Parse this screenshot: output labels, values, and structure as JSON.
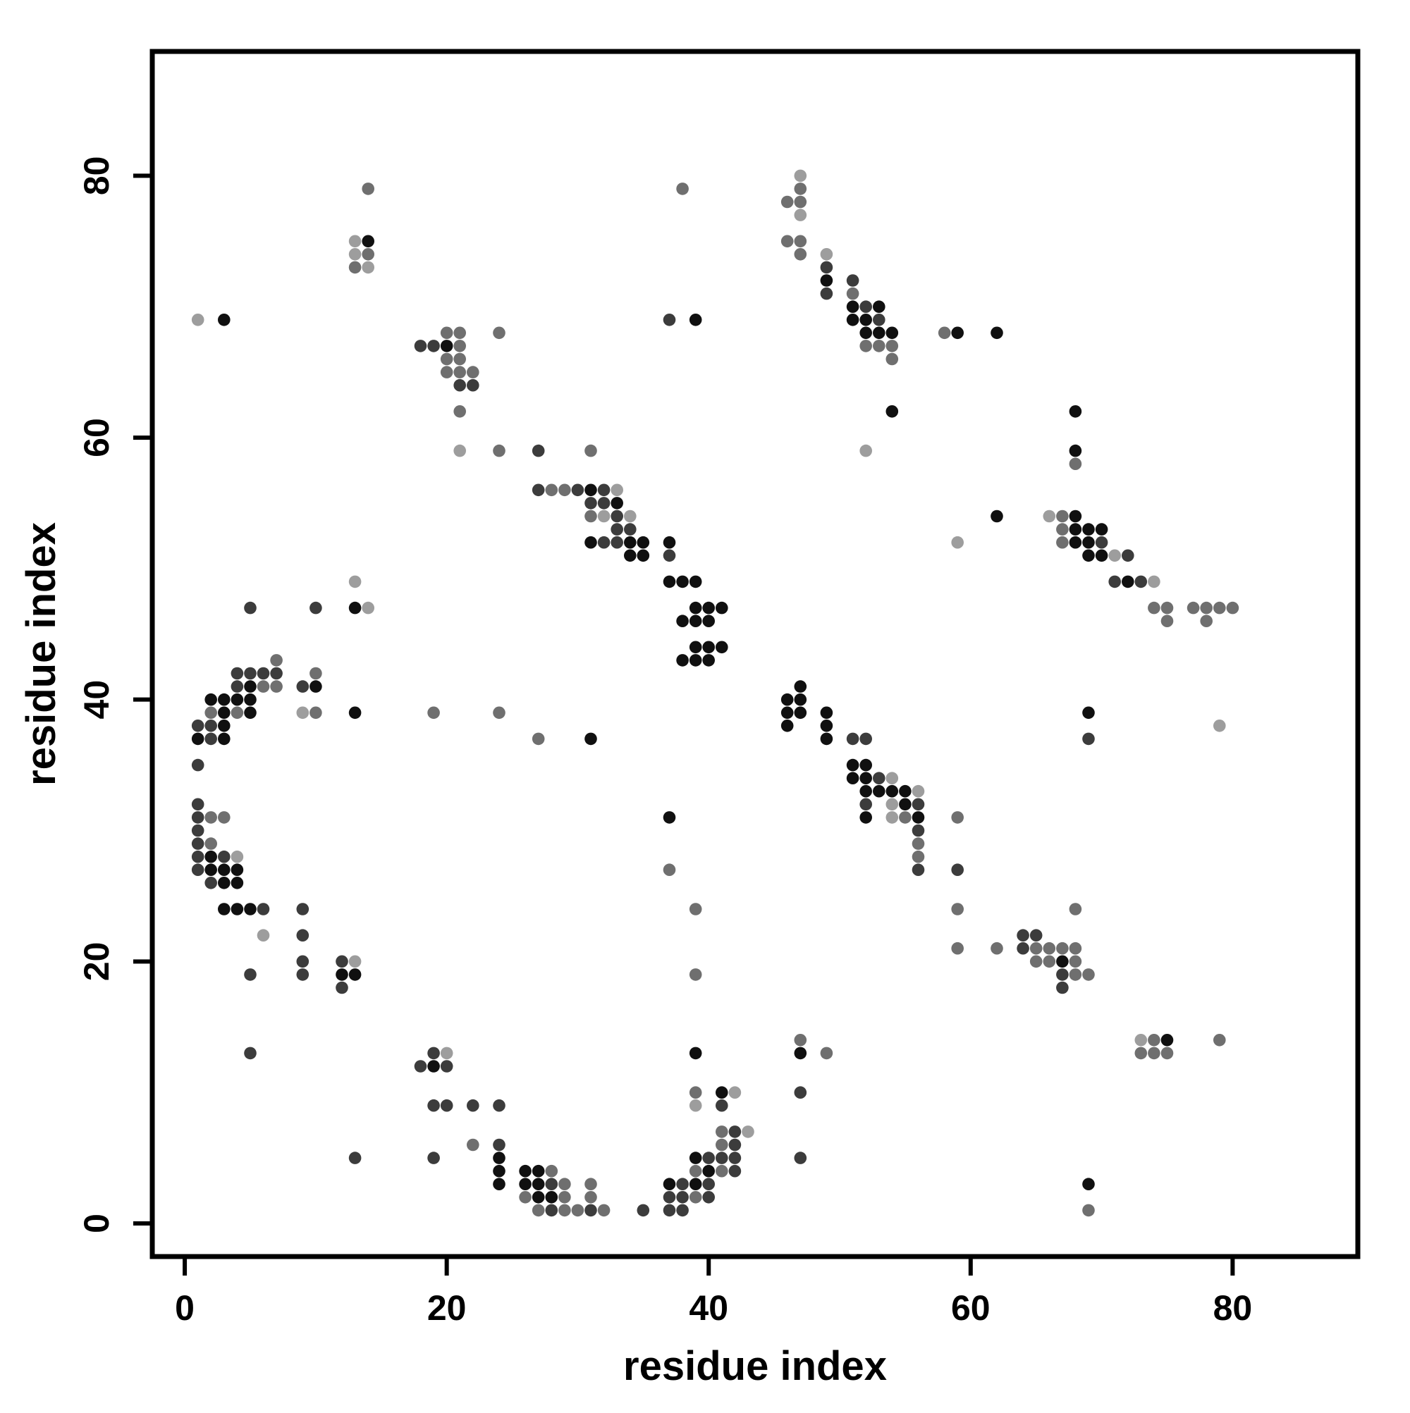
{
  "figure": {
    "background": "#ffffff",
    "frame_color": "#000000"
  },
  "chart_data": {
    "type": "scatter",
    "title": "",
    "xlabel": "residue index",
    "ylabel": "residue index",
    "xticks": [
      0,
      20,
      40,
      60,
      80
    ],
    "yticks": [
      0,
      20,
      40,
      60,
      80
    ],
    "xlim": [
      -2.48,
      89.56
    ],
    "ylim": [
      -2.53,
      89.49
    ],
    "grid": "off",
    "legend": "none",
    "marker": "filled-circle",
    "shade_colors": {
      "K": "#101010",
      "D": "#3c3c3c",
      "G": "#6f6f6f",
      "L": "#9d9d9d"
    },
    "points": [
      [
        47,
        80,
        "L"
      ],
      [
        14,
        79,
        "G"
      ],
      [
        38,
        79,
        "G"
      ],
      [
        47,
        79,
        "G"
      ],
      [
        46,
        78,
        "G"
      ],
      [
        47,
        78,
        "G"
      ],
      [
        47,
        77,
        "L"
      ],
      [
        13,
        75,
        "L"
      ],
      [
        14,
        75,
        "K"
      ],
      [
        46,
        75,
        "G"
      ],
      [
        47,
        75,
        "G"
      ],
      [
        13,
        74,
        "L"
      ],
      [
        14,
        74,
        "G"
      ],
      [
        47,
        74,
        "G"
      ],
      [
        49,
        74,
        "L"
      ],
      [
        13,
        73,
        "G"
      ],
      [
        14,
        73,
        "L"
      ],
      [
        49,
        73,
        "D"
      ],
      [
        49,
        72,
        "K"
      ],
      [
        51,
        72,
        "D"
      ],
      [
        49,
        71,
        "D"
      ],
      [
        51,
        71,
        "G"
      ],
      [
        51,
        70,
        "K"
      ],
      [
        52,
        70,
        "D"
      ],
      [
        53,
        70,
        "K"
      ],
      [
        1,
        69,
        "L"
      ],
      [
        3,
        69,
        "K"
      ],
      [
        37,
        69,
        "D"
      ],
      [
        39,
        69,
        "K"
      ],
      [
        51,
        69,
        "K"
      ],
      [
        52,
        69,
        "K"
      ],
      [
        53,
        69,
        "D"
      ],
      [
        20,
        68,
        "G"
      ],
      [
        21,
        68,
        "G"
      ],
      [
        24,
        68,
        "G"
      ],
      [
        52,
        68,
        "K"
      ],
      [
        53,
        68,
        "K"
      ],
      [
        54,
        68,
        "K"
      ],
      [
        58,
        68,
        "G"
      ],
      [
        59,
        68,
        "K"
      ],
      [
        62,
        68,
        "K"
      ],
      [
        18,
        67,
        "D"
      ],
      [
        19,
        67,
        "D"
      ],
      [
        20,
        67,
        "K"
      ],
      [
        21,
        67,
        "G"
      ],
      [
        52,
        67,
        "G"
      ],
      [
        53,
        67,
        "G"
      ],
      [
        54,
        67,
        "G"
      ],
      [
        20,
        66,
        "G"
      ],
      [
        21,
        66,
        "G"
      ],
      [
        54,
        66,
        "G"
      ],
      [
        20,
        65,
        "G"
      ],
      [
        21,
        65,
        "G"
      ],
      [
        22,
        65,
        "G"
      ],
      [
        21,
        64,
        "D"
      ],
      [
        22,
        64,
        "D"
      ],
      [
        21,
        62,
        "G"
      ],
      [
        54,
        62,
        "K"
      ],
      [
        68,
        62,
        "K"
      ],
      [
        21,
        59,
        "L"
      ],
      [
        24,
        59,
        "G"
      ],
      [
        27,
        59,
        "D"
      ],
      [
        31,
        59,
        "G"
      ],
      [
        52,
        59,
        "L"
      ],
      [
        68,
        59,
        "K"
      ],
      [
        68,
        58,
        "G"
      ],
      [
        27,
        56,
        "D"
      ],
      [
        28,
        56,
        "G"
      ],
      [
        29,
        56,
        "G"
      ],
      [
        30,
        56,
        "D"
      ],
      [
        31,
        56,
        "K"
      ],
      [
        32,
        56,
        "D"
      ],
      [
        33,
        56,
        "L"
      ],
      [
        31,
        55,
        "D"
      ],
      [
        32,
        55,
        "D"
      ],
      [
        33,
        55,
        "K"
      ],
      [
        31,
        54,
        "G"
      ],
      [
        32,
        54,
        "L"
      ],
      [
        33,
        54,
        "D"
      ],
      [
        34,
        54,
        "L"
      ],
      [
        62,
        54,
        "K"
      ],
      [
        66,
        54,
        "L"
      ],
      [
        67,
        54,
        "G"
      ],
      [
        68,
        54,
        "K"
      ],
      [
        33,
        53,
        "D"
      ],
      [
        34,
        53,
        "D"
      ],
      [
        67,
        53,
        "G"
      ],
      [
        68,
        53,
        "K"
      ],
      [
        69,
        53,
        "K"
      ],
      [
        70,
        53,
        "K"
      ],
      [
        31,
        52,
        "K"
      ],
      [
        32,
        52,
        "D"
      ],
      [
        33,
        52,
        "D"
      ],
      [
        34,
        52,
        "K"
      ],
      [
        35,
        52,
        "K"
      ],
      [
        37,
        52,
        "K"
      ],
      [
        59,
        52,
        "L"
      ],
      [
        67,
        52,
        "G"
      ],
      [
        68,
        52,
        "K"
      ],
      [
        69,
        52,
        "K"
      ],
      [
        70,
        52,
        "D"
      ],
      [
        34,
        51,
        "K"
      ],
      [
        35,
        51,
        "K"
      ],
      [
        37,
        51,
        "D"
      ],
      [
        69,
        51,
        "K"
      ],
      [
        70,
        51,
        "K"
      ],
      [
        71,
        51,
        "L"
      ],
      [
        72,
        51,
        "D"
      ],
      [
        13,
        49,
        "L"
      ],
      [
        37,
        49,
        "K"
      ],
      [
        38,
        49,
        "K"
      ],
      [
        39,
        49,
        "K"
      ],
      [
        71,
        49,
        "D"
      ],
      [
        72,
        49,
        "K"
      ],
      [
        73,
        49,
        "D"
      ],
      [
        74,
        49,
        "L"
      ],
      [
        5,
        47,
        "D"
      ],
      [
        10,
        47,
        "D"
      ],
      [
        13,
        47,
        "K"
      ],
      [
        14,
        47,
        "L"
      ],
      [
        39,
        47,
        "K"
      ],
      [
        40,
        47,
        "K"
      ],
      [
        41,
        47,
        "K"
      ],
      [
        74,
        47,
        "G"
      ],
      [
        75,
        47,
        "G"
      ],
      [
        77,
        47,
        "G"
      ],
      [
        78,
        47,
        "G"
      ],
      [
        79,
        47,
        "G"
      ],
      [
        80,
        47,
        "G"
      ],
      [
        38,
        46,
        "K"
      ],
      [
        39,
        46,
        "K"
      ],
      [
        40,
        46,
        "K"
      ],
      [
        75,
        46,
        "G"
      ],
      [
        78,
        46,
        "G"
      ],
      [
        39,
        44,
        "K"
      ],
      [
        40,
        44,
        "K"
      ],
      [
        41,
        44,
        "K"
      ],
      [
        7,
        43,
        "G"
      ],
      [
        38,
        43,
        "K"
      ],
      [
        39,
        43,
        "K"
      ],
      [
        40,
        43,
        "K"
      ],
      [
        4,
        42,
        "D"
      ],
      [
        5,
        42,
        "D"
      ],
      [
        6,
        42,
        "D"
      ],
      [
        7,
        42,
        "D"
      ],
      [
        10,
        42,
        "G"
      ],
      [
        4,
        41,
        "D"
      ],
      [
        5,
        41,
        "K"
      ],
      [
        6,
        41,
        "G"
      ],
      [
        7,
        41,
        "G"
      ],
      [
        9,
        41,
        "D"
      ],
      [
        10,
        41,
        "K"
      ],
      [
        47,
        41,
        "K"
      ],
      [
        2,
        40,
        "K"
      ],
      [
        3,
        40,
        "K"
      ],
      [
        4,
        40,
        "K"
      ],
      [
        5,
        40,
        "K"
      ],
      [
        46,
        40,
        "K"
      ],
      [
        47,
        40,
        "K"
      ],
      [
        2,
        39,
        "G"
      ],
      [
        3,
        39,
        "K"
      ],
      [
        4,
        39,
        "G"
      ],
      [
        5,
        39,
        "K"
      ],
      [
        9,
        39,
        "L"
      ],
      [
        10,
        39,
        "G"
      ],
      [
        13,
        39,
        "K"
      ],
      [
        19,
        39,
        "G"
      ],
      [
        24,
        39,
        "G"
      ],
      [
        46,
        39,
        "K"
      ],
      [
        47,
        39,
        "K"
      ],
      [
        49,
        39,
        "K"
      ],
      [
        69,
        39,
        "K"
      ],
      [
        1,
        38,
        "D"
      ],
      [
        2,
        38,
        "D"
      ],
      [
        3,
        38,
        "K"
      ],
      [
        46,
        38,
        "K"
      ],
      [
        49,
        38,
        "K"
      ],
      [
        79,
        38,
        "L"
      ],
      [
        1,
        37,
        "K"
      ],
      [
        2,
        37,
        "D"
      ],
      [
        3,
        37,
        "K"
      ],
      [
        27,
        37,
        "G"
      ],
      [
        31,
        37,
        "K"
      ],
      [
        49,
        37,
        "K"
      ],
      [
        51,
        37,
        "D"
      ],
      [
        52,
        37,
        "D"
      ],
      [
        69,
        37,
        "D"
      ],
      [
        1,
        35,
        "D"
      ],
      [
        51,
        35,
        "K"
      ],
      [
        52,
        35,
        "K"
      ],
      [
        51,
        34,
        "K"
      ],
      [
        52,
        34,
        "K"
      ],
      [
        53,
        34,
        "D"
      ],
      [
        54,
        34,
        "L"
      ],
      [
        52,
        33,
        "K"
      ],
      [
        53,
        33,
        "K"
      ],
      [
        54,
        33,
        "K"
      ],
      [
        55,
        33,
        "K"
      ],
      [
        56,
        33,
        "L"
      ],
      [
        1,
        32,
        "D"
      ],
      [
        52,
        32,
        "D"
      ],
      [
        54,
        32,
        "L"
      ],
      [
        55,
        32,
        "K"
      ],
      [
        56,
        32,
        "D"
      ],
      [
        1,
        31,
        "D"
      ],
      [
        2,
        31,
        "G"
      ],
      [
        3,
        31,
        "G"
      ],
      [
        37,
        31,
        "K"
      ],
      [
        52,
        31,
        "K"
      ],
      [
        54,
        31,
        "L"
      ],
      [
        55,
        31,
        "G"
      ],
      [
        56,
        31,
        "K"
      ],
      [
        59,
        31,
        "G"
      ],
      [
        1,
        30,
        "D"
      ],
      [
        56,
        30,
        "D"
      ],
      [
        1,
        29,
        "D"
      ],
      [
        2,
        29,
        "G"
      ],
      [
        56,
        29,
        "G"
      ],
      [
        1,
        28,
        "D"
      ],
      [
        2,
        28,
        "K"
      ],
      [
        3,
        28,
        "D"
      ],
      [
        4,
        28,
        "L"
      ],
      [
        56,
        28,
        "G"
      ],
      [
        1,
        27,
        "D"
      ],
      [
        2,
        27,
        "K"
      ],
      [
        3,
        27,
        "K"
      ],
      [
        4,
        27,
        "K"
      ],
      [
        37,
        27,
        "G"
      ],
      [
        56,
        27,
        "D"
      ],
      [
        59,
        27,
        "D"
      ],
      [
        2,
        26,
        "D"
      ],
      [
        3,
        26,
        "K"
      ],
      [
        4,
        26,
        "K"
      ],
      [
        3,
        24,
        "K"
      ],
      [
        4,
        24,
        "K"
      ],
      [
        5,
        24,
        "K"
      ],
      [
        6,
        24,
        "D"
      ],
      [
        9,
        24,
        "D"
      ],
      [
        39,
        24,
        "G"
      ],
      [
        59,
        24,
        "G"
      ],
      [
        68,
        24,
        "G"
      ],
      [
        6,
        22,
        "L"
      ],
      [
        9,
        22,
        "D"
      ],
      [
        64,
        22,
        "D"
      ],
      [
        65,
        22,
        "D"
      ],
      [
        59,
        21,
        "G"
      ],
      [
        62,
        21,
        "G"
      ],
      [
        64,
        21,
        "D"
      ],
      [
        65,
        21,
        "G"
      ],
      [
        66,
        21,
        "G"
      ],
      [
        67,
        21,
        "G"
      ],
      [
        68,
        21,
        "G"
      ],
      [
        9,
        20,
        "D"
      ],
      [
        12,
        20,
        "D"
      ],
      [
        13,
        20,
        "L"
      ],
      [
        65,
        20,
        "G"
      ],
      [
        66,
        20,
        "G"
      ],
      [
        67,
        20,
        "K"
      ],
      [
        68,
        20,
        "G"
      ],
      [
        5,
        19,
        "D"
      ],
      [
        9,
        19,
        "D"
      ],
      [
        12,
        19,
        "K"
      ],
      [
        13,
        19,
        "K"
      ],
      [
        39,
        19,
        "G"
      ],
      [
        67,
        19,
        "D"
      ],
      [
        68,
        19,
        "G"
      ],
      [
        69,
        19,
        "G"
      ],
      [
        12,
        18,
        "D"
      ],
      [
        67,
        18,
        "D"
      ],
      [
        47,
        14,
        "G"
      ],
      [
        73,
        14,
        "L"
      ],
      [
        74,
        14,
        "G"
      ],
      [
        75,
        14,
        "K"
      ],
      [
        79,
        14,
        "G"
      ],
      [
        5,
        13,
        "D"
      ],
      [
        19,
        13,
        "D"
      ],
      [
        20,
        13,
        "L"
      ],
      [
        39,
        13,
        "K"
      ],
      [
        47,
        13,
        "K"
      ],
      [
        49,
        13,
        "G"
      ],
      [
        73,
        13,
        "G"
      ],
      [
        74,
        13,
        "G"
      ],
      [
        75,
        13,
        "G"
      ],
      [
        18,
        12,
        "D"
      ],
      [
        19,
        12,
        "K"
      ],
      [
        20,
        12,
        "D"
      ],
      [
        39,
        10,
        "G"
      ],
      [
        41,
        10,
        "K"
      ],
      [
        42,
        10,
        "L"
      ],
      [
        47,
        10,
        "D"
      ],
      [
        19,
        9,
        "D"
      ],
      [
        20,
        9,
        "D"
      ],
      [
        22,
        9,
        "D"
      ],
      [
        24,
        9,
        "D"
      ],
      [
        39,
        9,
        "L"
      ],
      [
        41,
        9,
        "D"
      ],
      [
        41,
        7,
        "G"
      ],
      [
        42,
        7,
        "D"
      ],
      [
        43,
        7,
        "L"
      ],
      [
        22,
        6,
        "G"
      ],
      [
        24,
        6,
        "D"
      ],
      [
        41,
        6,
        "G"
      ],
      [
        42,
        6,
        "D"
      ],
      [
        13,
        5,
        "D"
      ],
      [
        19,
        5,
        "D"
      ],
      [
        24,
        5,
        "K"
      ],
      [
        39,
        5,
        "K"
      ],
      [
        40,
        5,
        "D"
      ],
      [
        41,
        5,
        "D"
      ],
      [
        42,
        5,
        "D"
      ],
      [
        47,
        5,
        "D"
      ],
      [
        24,
        4,
        "K"
      ],
      [
        26,
        4,
        "K"
      ],
      [
        27,
        4,
        "K"
      ],
      [
        28,
        4,
        "G"
      ],
      [
        39,
        4,
        "G"
      ],
      [
        40,
        4,
        "K"
      ],
      [
        41,
        4,
        "G"
      ],
      [
        42,
        4,
        "D"
      ],
      [
        24,
        3,
        "K"
      ],
      [
        26,
        3,
        "K"
      ],
      [
        27,
        3,
        "K"
      ],
      [
        28,
        3,
        "D"
      ],
      [
        29,
        3,
        "G"
      ],
      [
        31,
        3,
        "G"
      ],
      [
        37,
        3,
        "K"
      ],
      [
        38,
        3,
        "D"
      ],
      [
        39,
        3,
        "K"
      ],
      [
        40,
        3,
        "D"
      ],
      [
        69,
        3,
        "K"
      ],
      [
        26,
        2,
        "G"
      ],
      [
        27,
        2,
        "K"
      ],
      [
        28,
        2,
        "K"
      ],
      [
        29,
        2,
        "G"
      ],
      [
        31,
        2,
        "G"
      ],
      [
        37,
        2,
        "D"
      ],
      [
        38,
        2,
        "D"
      ],
      [
        39,
        2,
        "G"
      ],
      [
        40,
        2,
        "D"
      ],
      [
        27,
        1,
        "G"
      ],
      [
        28,
        1,
        "D"
      ],
      [
        29,
        1,
        "G"
      ],
      [
        30,
        1,
        "G"
      ],
      [
        31,
        1,
        "D"
      ],
      [
        32,
        1,
        "G"
      ],
      [
        35,
        1,
        "D"
      ],
      [
        37,
        1,
        "D"
      ],
      [
        38,
        1,
        "D"
      ],
      [
        69,
        1,
        "G"
      ]
    ]
  }
}
